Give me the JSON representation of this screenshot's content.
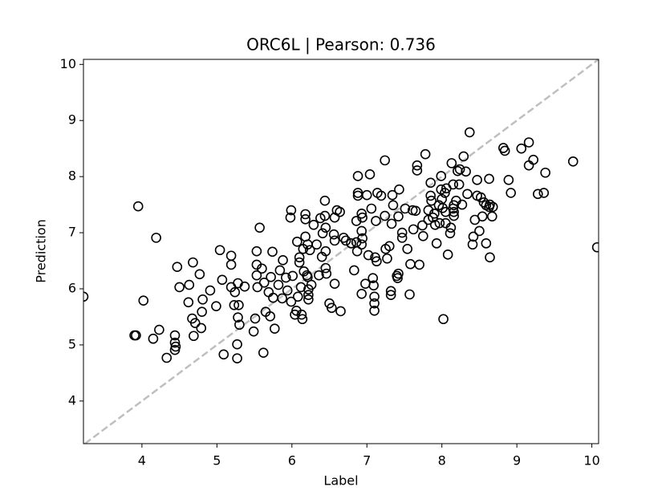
{
  "chart_data": {
    "type": "scatter",
    "title": "ORC6L  |  Pearson: 0.736",
    "x_label": "Label",
    "y_label": "Prediction",
    "x": [
      3.22,
      3.95,
      4.02,
      4.19,
      3.9,
      3.92,
      4.15,
      4.23,
      4.33,
      4.44,
      4.44,
      4.45,
      4.44,
      4.47,
      4.5,
      4.63,
      4.62,
      4.68,
      4.67,
      4.71,
      4.69,
      4.79,
      4.77,
      4.81,
      4.8,
      4.91,
      4.99,
      5.04,
      5.07,
      5.09,
      5.19,
      5.19,
      5.19,
      5.23,
      5.24,
      5.28,
      5.28,
      5.3,
      5.27,
      5.27,
      5.29,
      5.37,
      5.49,
      5.51,
      5.53,
      5.53,
      5.53,
      5.54,
      5.57,
      5.6,
      5.63,
      5.62,
      5.65,
      5.69,
      5.71,
      5.72,
      5.74,
      5.75,
      5.77,
      5.82,
      5.84,
      5.87,
      5.88,
      5.92,
      5.94,
      5.98,
      5.99,
      5.99,
      6.01,
      6.04,
      6.06,
      6.07,
      6.08,
      6.1,
      6.1,
      6.12,
      6.13,
      6.14,
      6.15,
      6.16,
      6.18,
      6.18,
      6.18,
      6.2,
      6.21,
      6.21,
      6.22,
      6.22,
      6.22,
      6.24,
      6.26,
      6.29,
      6.33,
      6.36,
      6.38,
      6.4,
      6.41,
      6.44,
      6.44,
      6.45,
      6.46,
      6.45,
      6.45,
      6.5,
      6.53,
      6.56,
      6.57,
      6.57,
      6.57,
      6.6,
      6.64,
      6.65,
      6.69,
      6.72,
      6.79,
      6.83,
      6.86,
      6.86,
      6.87,
      6.88,
      6.88,
      6.88,
      6.93,
      6.93,
      6.94,
      6.94,
      6.93,
      6.93,
      6.98,
      7.0,
      7.02,
      7.04,
      7.06,
      7.08,
      7.09,
      7.1,
      7.1,
      7.1,
      7.11,
      7.12,
      7.13,
      7.14,
      7.19,
      7.24,
      7.24,
      7.25,
      7.27,
      7.3,
      7.32,
      7.32,
      7.33,
      7.34,
      7.35,
      7.4,
      7.41,
      7.42,
      7.42,
      7.43,
      7.47,
      7.47,
      7.51,
      7.54,
      7.57,
      7.58,
      7.61,
      7.62,
      7.65,
      7.67,
      7.67,
      7.7,
      7.74,
      7.75,
      7.78,
      7.82,
      7.82,
      7.85,
      7.85,
      7.86,
      7.88,
      7.9,
      7.91,
      7.93,
      7.96,
      7.97,
      7.99,
      7.99,
      8.0,
      8.01,
      8.02,
      8.04,
      8.05,
      8.05,
      8.06,
      8.08,
      8.11,
      8.12,
      8.13,
      8.15,
      8.16,
      8.15,
      8.16,
      8.16,
      8.19,
      8.21,
      8.23,
      8.24,
      8.27,
      8.29,
      8.32,
      8.34,
      8.37,
      8.41,
      8.42,
      8.44,
      8.47,
      8.47,
      8.5,
      8.52,
      8.54,
      8.56,
      8.59,
      8.59,
      8.63,
      8.64,
      8.63,
      8.64,
      8.67,
      8.68,
      8.82,
      8.84,
      8.89,
      8.92,
      9.06,
      9.16,
      9.16,
      9.22,
      9.28,
      9.36,
      9.38,
      9.75,
      10.07
    ],
    "values": [
      5.86,
      7.47,
      5.79,
      6.91,
      5.17,
      5.17,
      5.11,
      5.27,
      4.77,
      5.17,
      5.04,
      4.97,
      4.91,
      6.39,
      6.03,
      6.07,
      5.76,
      6.47,
      5.47,
      5.39,
      5.16,
      5.3,
      6.26,
      5.81,
      5.59,
      5.97,
      5.69,
      6.69,
      6.16,
      4.83,
      6.59,
      6.43,
      6.03,
      5.71,
      5.94,
      6.1,
      5.49,
      5.36,
      5.01,
      4.76,
      5.71,
      6.04,
      5.24,
      5.47,
      6.67,
      6.43,
      6.24,
      6.03,
      7.09,
      6.36,
      6.11,
      4.86,
      5.59,
      5.94,
      5.51,
      6.21,
      6.66,
      5.84,
      5.29,
      6.07,
      6.33,
      5.83,
      6.51,
      6.2,
      5.97,
      7.27,
      7.4,
      5.77,
      6.23,
      5.54,
      5.61,
      6.84,
      5.86,
      6.56,
      6.47,
      6.03,
      5.54,
      5.46,
      6.71,
      6.31,
      7.33,
      7.24,
      6.93,
      6.24,
      6.79,
      6.21,
      5.99,
      5.89,
      5.81,
      6.69,
      6.07,
      7.14,
      6.79,
      6.24,
      7.26,
      6.57,
      6.99,
      7.57,
      7.3,
      6.37,
      6.27,
      6.67,
      7.09,
      5.74,
      5.66,
      6.97,
      6.86,
      7.27,
      6.09,
      7.4,
      7.37,
      5.6,
      6.91,
      6.86,
      6.81,
      6.33,
      6.83,
      7.21,
      6.67,
      8.01,
      7.71,
      7.66,
      7.03,
      7.34,
      7.27,
      6.9,
      6.79,
      5.91,
      6.09,
      7.67,
      6.6,
      8.04,
      7.43,
      6.19,
      6.06,
      5.86,
      5.74,
      5.61,
      6.56,
      7.21,
      6.49,
      7.71,
      7.66,
      8.29,
      7.3,
      6.71,
      6.54,
      6.76,
      5.96,
      5.89,
      7.16,
      7.67,
      7.49,
      6.23,
      6.19,
      6.27,
      7.29,
      7.77,
      6.91,
      7.0,
      7.43,
      6.71,
      5.9,
      6.44,
      7.4,
      7.06,
      7.39,
      8.2,
      8.11,
      6.43,
      7.13,
      6.94,
      8.4,
      7.4,
      7.23,
      7.66,
      7.89,
      7.57,
      7.27,
      7.34,
      7.14,
      6.81,
      7.49,
      7.17,
      8.01,
      7.77,
      7.6,
      7.44,
      5.46,
      7.71,
      7.17,
      7.37,
      7.79,
      6.61,
      6.99,
      7.09,
      8.24,
      7.86,
      7.49,
      7.43,
      7.37,
      7.3,
      7.57,
      8.1,
      7.86,
      8.13,
      7.5,
      8.36,
      8.09,
      7.69,
      8.79,
      6.79,
      6.93,
      7.23,
      7.94,
      7.66,
      7.03,
      7.63,
      7.29,
      7.54,
      6.81,
      7.49,
      7.46,
      7.5,
      7.96,
      6.56,
      7.29,
      7.46,
      8.51,
      8.46,
      7.94,
      7.71,
      8.5,
      8.61,
      8.2,
      8.3,
      7.69,
      7.71,
      8.07,
      8.27,
      6.74
    ],
    "color": "#000000",
    "diagonal": true,
    "xlim": [
      3.22,
      10.09
    ],
    "ylim": [
      3.24,
      10.09
    ],
    "xticks": [
      4,
      5,
      6,
      7,
      8,
      9,
      10
    ],
    "yticks": [
      4,
      5,
      6,
      7,
      8,
      9,
      10
    ]
  }
}
